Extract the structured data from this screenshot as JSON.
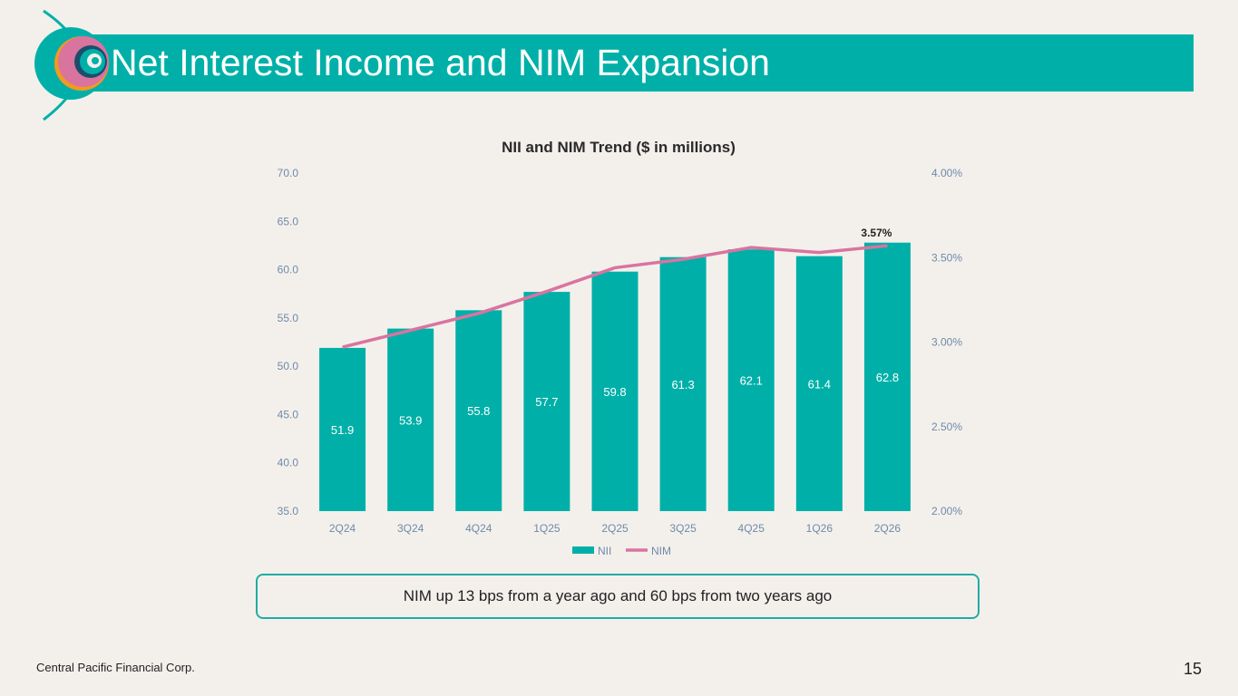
{
  "slide": {
    "title": "Net Interest Income and NIM Expansion",
    "callout": "NIM up 13 bps from a year ago and 60 bps from two years ago",
    "footer": "Central Pacific Financial Corp.",
    "page_number": "15"
  },
  "colors": {
    "brand_teal": "#00b0a8",
    "nim_line": "#d9749f",
    "axis_text": "#6f8aa8",
    "logo_pink": "#d9749f",
    "logo_orange": "#f29a1f",
    "logo_dark": "#1b4e6b"
  },
  "chart_data": {
    "type": "bar",
    "title": "NII and NIM Trend ($ in millions)",
    "categories": [
      "2Q24",
      "3Q24",
      "4Q24",
      "1Q25",
      "2Q25",
      "3Q25",
      "4Q25",
      "1Q26",
      "2Q26"
    ],
    "series": [
      {
        "name": "NII",
        "type": "bar",
        "axis": "left",
        "values": [
          51.9,
          53.9,
          55.8,
          57.7,
          59.8,
          61.3,
          62.1,
          61.4,
          62.8
        ]
      },
      {
        "name": "NIM",
        "type": "line",
        "axis": "right",
        "values": [
          2.97,
          3.07,
          3.17,
          3.3,
          3.44,
          3.49,
          3.56,
          3.53,
          3.57
        ],
        "unit": "%"
      }
    ],
    "y_left": {
      "ylim": [
        35.0,
        70.0
      ],
      "ticks": [
        "35.0",
        "40.0",
        "45.0",
        "50.0",
        "55.0",
        "60.0",
        "65.0",
        "70.0"
      ]
    },
    "y_right": {
      "ylim": [
        2.0,
        4.0
      ],
      "ticks": [
        "2.00%",
        "2.50%",
        "3.00%",
        "3.50%",
        "4.00%"
      ]
    },
    "annotations": [
      {
        "series": "NIM",
        "category": "2Q26",
        "text": "3.57%"
      }
    ],
    "legend": {
      "position": "bottom",
      "entries": [
        "NII",
        "NIM"
      ]
    },
    "grid": false
  }
}
